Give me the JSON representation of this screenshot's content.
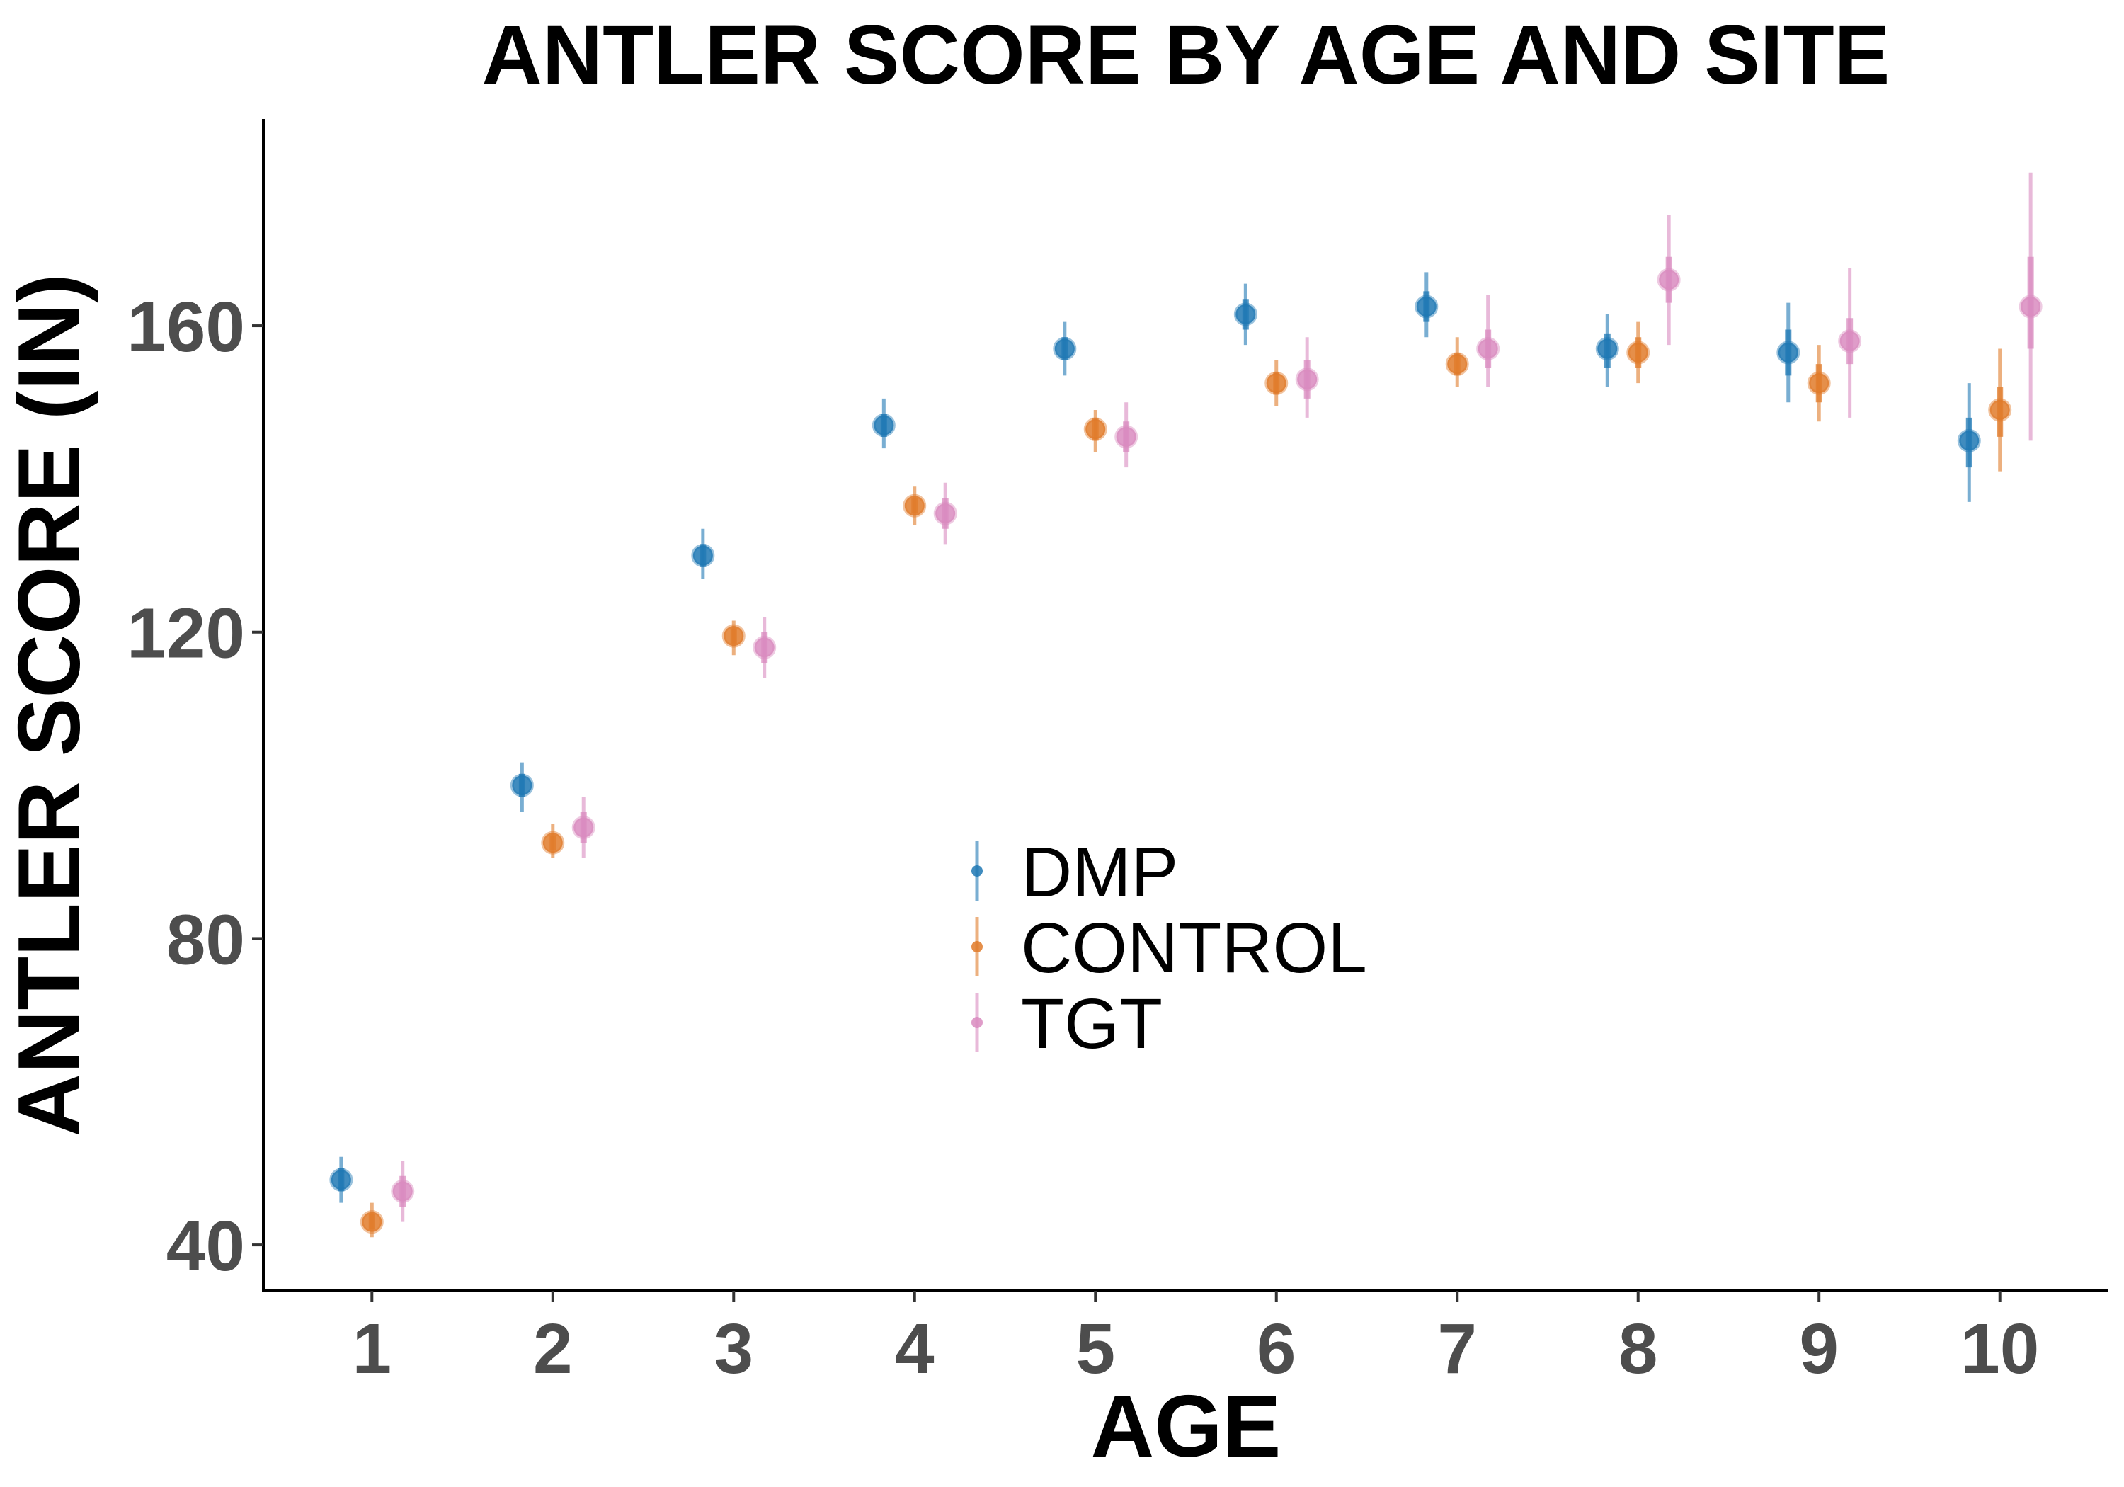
{
  "chart_data": {
    "type": "scatter",
    "title": "ANTLER SCORE BY AGE AND SITE",
    "xlabel": "AGE",
    "ylabel": "ANTLER SCORE (IN)",
    "x_ticks": [
      "1",
      "2",
      "3",
      "4",
      "5",
      "6",
      "7",
      "8",
      "9",
      "10"
    ],
    "y_ticks": [
      40,
      80,
      120,
      160
    ],
    "y_tick_labels": [
      "40",
      "80",
      "120",
      "160"
    ],
    "xlim": [
      0.4,
      10.6
    ],
    "ylim": [
      34,
      187
    ],
    "grid": false,
    "legend_position": "center",
    "series": [
      {
        "name": "DMP",
        "color": "#1f78b4",
        "x_offset": -0.17,
        "points": [
          {
            "x": 1,
            "y": 48.5,
            "lo": 45.5,
            "hi": 51.5,
            "lo_inner": 47.0,
            "hi_inner": 50.0
          },
          {
            "x": 2,
            "y": 100.0,
            "lo": 96.5,
            "hi": 103.0,
            "lo_inner": 98.5,
            "hi_inner": 101.5
          },
          {
            "x": 3,
            "y": 130.0,
            "lo": 127.0,
            "hi": 133.5,
            "lo_inner": 128.5,
            "hi_inner": 131.5
          },
          {
            "x": 4,
            "y": 147.0,
            "lo": 144.0,
            "hi": 150.5,
            "lo_inner": 145.5,
            "hi_inner": 148.5
          },
          {
            "x": 5,
            "y": 157.0,
            "lo": 153.5,
            "hi": 160.5,
            "lo_inner": 155.5,
            "hi_inner": 158.5
          },
          {
            "x": 6,
            "y": 161.5,
            "lo": 157.5,
            "hi": 165.5,
            "lo_inner": 159.5,
            "hi_inner": 163.5
          },
          {
            "x": 7,
            "y": 162.5,
            "lo": 158.5,
            "hi": 167.0,
            "lo_inner": 160.5,
            "hi_inner": 164.5
          },
          {
            "x": 8,
            "y": 157.0,
            "lo": 152.0,
            "hi": 161.5,
            "lo_inner": 154.5,
            "hi_inner": 159.0
          },
          {
            "x": 9,
            "y": 156.5,
            "lo": 150.0,
            "hi": 163.0,
            "lo_inner": 153.5,
            "hi_inner": 159.5
          },
          {
            "x": 10,
            "y": 145.0,
            "lo": 137.0,
            "hi": 152.5,
            "lo_inner": 141.5,
            "hi_inner": 148.0
          }
        ]
      },
      {
        "name": "CONTROL",
        "color": "#e07b2a",
        "x_offset": 0.0,
        "points": [
          {
            "x": 1,
            "y": 43.0,
            "lo": 41.0,
            "hi": 45.5,
            "lo_inner": 42.0,
            "hi_inner": 44.0
          },
          {
            "x": 2,
            "y": 92.5,
            "lo": 90.5,
            "hi": 95.0,
            "lo_inner": 91.5,
            "hi_inner": 93.5
          },
          {
            "x": 3,
            "y": 119.5,
            "lo": 117.0,
            "hi": 121.5,
            "lo_inner": 118.5,
            "hi_inner": 120.5
          },
          {
            "x": 4,
            "y": 136.5,
            "lo": 134.0,
            "hi": 139.0,
            "lo_inner": 135.5,
            "hi_inner": 137.5
          },
          {
            "x": 5,
            "y": 146.5,
            "lo": 143.5,
            "hi": 149.0,
            "lo_inner": 145.0,
            "hi_inner": 148.0
          },
          {
            "x": 6,
            "y": 152.5,
            "lo": 149.5,
            "hi": 155.5,
            "lo_inner": 151.0,
            "hi_inner": 154.0
          },
          {
            "x": 7,
            "y": 155.0,
            "lo": 152.0,
            "hi": 158.5,
            "lo_inner": 153.5,
            "hi_inner": 156.5
          },
          {
            "x": 8,
            "y": 156.5,
            "lo": 152.5,
            "hi": 160.5,
            "lo_inner": 154.5,
            "hi_inner": 158.5
          },
          {
            "x": 9,
            "y": 152.5,
            "lo": 147.5,
            "hi": 157.5,
            "lo_inner": 150.0,
            "hi_inner": 155.0
          },
          {
            "x": 10,
            "y": 149.0,
            "lo": 141.0,
            "hi": 157.0,
            "lo_inner": 145.5,
            "hi_inner": 152.0
          }
        ]
      },
      {
        "name": "TGT",
        "color": "#d98bbf",
        "x_offset": 0.17,
        "points": [
          {
            "x": 1,
            "y": 47.0,
            "lo": 43.0,
            "hi": 51.0,
            "lo_inner": 45.0,
            "hi_inner": 49.0
          },
          {
            "x": 2,
            "y": 94.5,
            "lo": 90.5,
            "hi": 98.5,
            "lo_inner": 92.5,
            "hi_inner": 96.5
          },
          {
            "x": 3,
            "y": 118.0,
            "lo": 114.0,
            "hi": 122.0,
            "lo_inner": 116.0,
            "hi_inner": 120.0
          },
          {
            "x": 4,
            "y": 135.5,
            "lo": 131.5,
            "hi": 139.5,
            "lo_inner": 133.5,
            "hi_inner": 137.5
          },
          {
            "x": 5,
            "y": 145.5,
            "lo": 141.5,
            "hi": 150.0,
            "lo_inner": 143.5,
            "hi_inner": 147.5
          },
          {
            "x": 6,
            "y": 153.0,
            "lo": 148.0,
            "hi": 158.5,
            "lo_inner": 150.5,
            "hi_inner": 155.5
          },
          {
            "x": 7,
            "y": 157.0,
            "lo": 152.0,
            "hi": 164.0,
            "lo_inner": 154.5,
            "hi_inner": 159.5
          },
          {
            "x": 8,
            "y": 166.0,
            "lo": 157.5,
            "hi": 174.5,
            "lo_inner": 163.0,
            "hi_inner": 169.0
          },
          {
            "x": 9,
            "y": 158.0,
            "lo": 148.0,
            "hi": 167.5,
            "lo_inner": 155.0,
            "hi_inner": 161.0
          },
          {
            "x": 10,
            "y": 162.5,
            "lo": 145.0,
            "hi": 180.0,
            "lo_inner": 157.0,
            "hi_inner": 169.0
          }
        ]
      }
    ]
  }
}
